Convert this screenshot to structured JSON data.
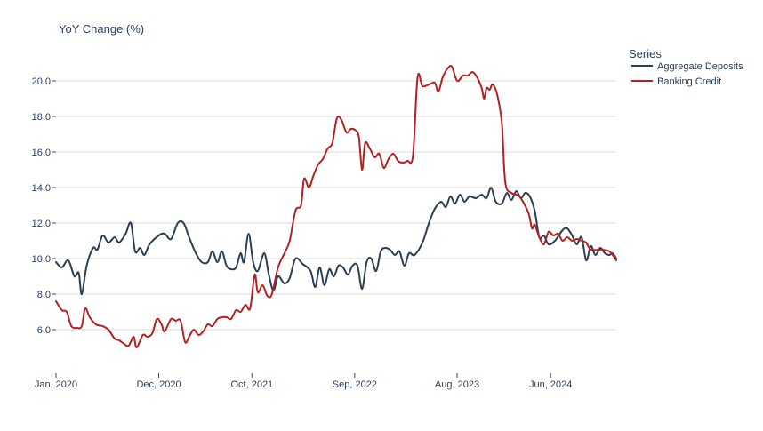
{
  "chart_data": {
    "type": "line",
    "title": "YoY Change (%)",
    "xlabel": "",
    "ylabel": "",
    "x_range": [
      "2020-01-01",
      "2025-01-01"
    ],
    "ylim": [
      4.2,
      21.8
    ],
    "x_ticks": [
      {
        "date": "2020-01-01",
        "label": "Jan, 2020"
      },
      {
        "date": "2020-12-01",
        "label": "Dec, 2020"
      },
      {
        "date": "2021-10-01",
        "label": "Oct, 2021"
      },
      {
        "date": "2022-09-01",
        "label": "Sep, 2022"
      },
      {
        "date": "2023-08-01",
        "label": "Aug, 2023"
      },
      {
        "date": "2024-06-01",
        "label": "Jun, 2024"
      }
    ],
    "y_ticks": [
      6.0,
      8.0,
      10.0,
      12.0,
      14.0,
      16.0,
      18.0,
      20.0
    ],
    "y_tick_labels": [
      "6.0",
      "8.0",
      "10.0",
      "12.0",
      "14.0",
      "16.0",
      "18.0",
      "20.0"
    ],
    "grid": "horizontal",
    "legend": {
      "title": "Series",
      "position": "top-right"
    },
    "series": [
      {
        "name": "Aggregate Deposits",
        "color": "#2c3e50",
        "points": [
          [
            "2020-01-01",
            9.8
          ],
          [
            "2020-01-20",
            9.5
          ],
          [
            "2020-02-10",
            9.9
          ],
          [
            "2020-03-01",
            9.0
          ],
          [
            "2020-03-15",
            9.2
          ],
          [
            "2020-03-25",
            8.0
          ],
          [
            "2020-04-10",
            9.6
          ],
          [
            "2020-05-01",
            10.6
          ],
          [
            "2020-05-15",
            10.5
          ],
          [
            "2020-06-01",
            11.3
          ],
          [
            "2020-06-20",
            10.9
          ],
          [
            "2020-07-10",
            11.2
          ],
          [
            "2020-07-25",
            10.9
          ],
          [
            "2020-08-15",
            11.4
          ],
          [
            "2020-09-01",
            12.0
          ],
          [
            "2020-09-15",
            10.4
          ],
          [
            "2020-10-01",
            10.6
          ],
          [
            "2020-10-15",
            10.2
          ],
          [
            "2020-11-01",
            10.8
          ],
          [
            "2020-12-01",
            11.3
          ],
          [
            "2020-12-20",
            11.4
          ],
          [
            "2021-01-10",
            11.1
          ],
          [
            "2021-02-01",
            12.0
          ],
          [
            "2021-02-20",
            12.0
          ],
          [
            "2021-03-10",
            11.2
          ],
          [
            "2021-04-01",
            10.3
          ],
          [
            "2021-04-20",
            9.8
          ],
          [
            "2021-05-10",
            9.8
          ],
          [
            "2021-05-25",
            10.4
          ],
          [
            "2021-06-10",
            9.8
          ],
          [
            "2021-06-25",
            10.4
          ],
          [
            "2021-07-10",
            9.6
          ],
          [
            "2021-07-25",
            9.4
          ],
          [
            "2021-08-10",
            9.5
          ],
          [
            "2021-08-25",
            10.3
          ],
          [
            "2021-09-05",
            9.8
          ],
          [
            "2021-09-20",
            11.4
          ],
          [
            "2021-10-05",
            9.8
          ],
          [
            "2021-10-20",
            9.3
          ],
          [
            "2021-11-10",
            10.3
          ],
          [
            "2021-11-25",
            9.1
          ],
          [
            "2021-12-10",
            8.2
          ],
          [
            "2021-12-25",
            9.0
          ],
          [
            "2022-01-15",
            8.6
          ],
          [
            "2022-02-01",
            8.9
          ],
          [
            "2022-02-20",
            10.0
          ],
          [
            "2022-03-15",
            9.7
          ],
          [
            "2022-04-10",
            9.3
          ],
          [
            "2022-04-25",
            8.4
          ],
          [
            "2022-05-10",
            9.5
          ],
          [
            "2022-05-25",
            8.5
          ],
          [
            "2022-06-10",
            9.4
          ],
          [
            "2022-06-25",
            9.0
          ],
          [
            "2022-07-10",
            9.6
          ],
          [
            "2022-07-25",
            9.5
          ],
          [
            "2022-08-10",
            9.1
          ],
          [
            "2022-08-25",
            9.6
          ],
          [
            "2022-09-10",
            9.6
          ],
          [
            "2022-09-25",
            8.3
          ],
          [
            "2022-10-10",
            9.8
          ],
          [
            "2022-10-25",
            10.0
          ],
          [
            "2022-11-10",
            9.3
          ],
          [
            "2022-11-25",
            10.4
          ],
          [
            "2022-12-10",
            10.6
          ],
          [
            "2022-12-25",
            10.5
          ],
          [
            "2023-01-10",
            10.2
          ],
          [
            "2023-01-25",
            10.4
          ],
          [
            "2023-02-10",
            9.6
          ],
          [
            "2023-02-25",
            10.3
          ],
          [
            "2023-03-15",
            10.2
          ],
          [
            "2023-04-10",
            10.9
          ],
          [
            "2023-05-01",
            12.0
          ],
          [
            "2023-05-20",
            12.8
          ],
          [
            "2023-06-10",
            13.2
          ],
          [
            "2023-06-25",
            12.9
          ],
          [
            "2023-07-10",
            13.5
          ],
          [
            "2023-07-25",
            13.1
          ],
          [
            "2023-08-10",
            13.6
          ],
          [
            "2023-08-25",
            13.2
          ],
          [
            "2023-09-10",
            13.5
          ],
          [
            "2023-10-01",
            13.4
          ],
          [
            "2023-10-20",
            13.6
          ],
          [
            "2023-11-05",
            13.4
          ],
          [
            "2023-11-20",
            14.0
          ],
          [
            "2023-12-05",
            13.2
          ],
          [
            "2023-12-25",
            13.1
          ],
          [
            "2024-01-10",
            13.7
          ],
          [
            "2024-01-25",
            13.3
          ],
          [
            "2024-02-10",
            13.8
          ],
          [
            "2024-02-25",
            13.4
          ],
          [
            "2024-03-10",
            13.7
          ],
          [
            "2024-03-25",
            13.5
          ],
          [
            "2024-04-10",
            12.7
          ],
          [
            "2024-04-25",
            11.2
          ],
          [
            "2024-05-10",
            11.3
          ],
          [
            "2024-05-25",
            10.8
          ],
          [
            "2024-06-15",
            11.0
          ],
          [
            "2024-07-10",
            11.6
          ],
          [
            "2024-07-25",
            11.7
          ],
          [
            "2024-08-10",
            11.3
          ],
          [
            "2024-08-25",
            10.8
          ],
          [
            "2024-09-10",
            11.2
          ],
          [
            "2024-09-25",
            9.9
          ],
          [
            "2024-10-10",
            10.7
          ],
          [
            "2024-10-25",
            10.2
          ],
          [
            "2024-11-10",
            10.6
          ],
          [
            "2024-11-25",
            10.3
          ],
          [
            "2024-12-10",
            10.2
          ],
          [
            "2024-12-20",
            10.3
          ],
          [
            "2025-01-01",
            10.0
          ]
        ]
      },
      {
        "name": "Banking Credit",
        "color": "#b22222",
        "points": [
          [
            "2020-01-01",
            7.6
          ],
          [
            "2020-01-20",
            7.1
          ],
          [
            "2020-02-05",
            7.0
          ],
          [
            "2020-02-20",
            6.2
          ],
          [
            "2020-03-10",
            6.1
          ],
          [
            "2020-03-25",
            6.2
          ],
          [
            "2020-04-05",
            7.2
          ],
          [
            "2020-04-20",
            6.7
          ],
          [
            "2020-05-10",
            6.3
          ],
          [
            "2020-06-01",
            6.2
          ],
          [
            "2020-06-20",
            6.0
          ],
          [
            "2020-07-10",
            5.5
          ],
          [
            "2020-07-25",
            5.4
          ],
          [
            "2020-08-10",
            5.2
          ],
          [
            "2020-08-25",
            5.1
          ],
          [
            "2020-09-10",
            5.6
          ],
          [
            "2020-09-20",
            5.0
          ],
          [
            "2020-10-10",
            5.7
          ],
          [
            "2020-10-25",
            5.6
          ],
          [
            "2020-11-10",
            5.8
          ],
          [
            "2020-11-25",
            6.6
          ],
          [
            "2020-12-10",
            6.3
          ],
          [
            "2020-12-20",
            5.9
          ],
          [
            "2021-01-10",
            6.6
          ],
          [
            "2021-01-25",
            6.5
          ],
          [
            "2021-02-10",
            6.5
          ],
          [
            "2021-02-25",
            5.3
          ],
          [
            "2021-03-10",
            5.6
          ],
          [
            "2021-03-25",
            6.0
          ],
          [
            "2021-04-10",
            5.7
          ],
          [
            "2021-04-25",
            5.9
          ],
          [
            "2021-05-10",
            6.3
          ],
          [
            "2021-05-25",
            6.2
          ],
          [
            "2021-06-10",
            6.6
          ],
          [
            "2021-06-25",
            6.7
          ],
          [
            "2021-07-10",
            6.7
          ],
          [
            "2021-07-25",
            6.6
          ],
          [
            "2021-08-10",
            7.1
          ],
          [
            "2021-08-25",
            7.0
          ],
          [
            "2021-09-10",
            7.4
          ],
          [
            "2021-09-25",
            7.2
          ],
          [
            "2021-10-10",
            9.1
          ],
          [
            "2021-10-20",
            8.1
          ],
          [
            "2021-11-05",
            8.5
          ],
          [
            "2021-11-20",
            7.9
          ],
          [
            "2021-12-05",
            8.0
          ],
          [
            "2021-12-25",
            9.5
          ],
          [
            "2022-01-15",
            10.3
          ],
          [
            "2022-02-01",
            11.0
          ],
          [
            "2022-02-20",
            12.7
          ],
          [
            "2022-03-10",
            13.0
          ],
          [
            "2022-03-20",
            14.5
          ],
          [
            "2022-04-05",
            14.0
          ],
          [
            "2022-04-20",
            14.7
          ],
          [
            "2022-05-05",
            15.3
          ],
          [
            "2022-05-20",
            15.6
          ],
          [
            "2022-06-05",
            16.2
          ],
          [
            "2022-06-20",
            16.5
          ],
          [
            "2022-07-05",
            17.9
          ],
          [
            "2022-07-20",
            17.8
          ],
          [
            "2022-08-05",
            17.1
          ],
          [
            "2022-08-20",
            17.3
          ],
          [
            "2022-09-05",
            17.2
          ],
          [
            "2022-09-15",
            16.8
          ],
          [
            "2022-09-25",
            15.0
          ],
          [
            "2022-10-05",
            16.5
          ],
          [
            "2022-10-20",
            16.2
          ],
          [
            "2022-11-05",
            15.7
          ],
          [
            "2022-11-20",
            15.9
          ],
          [
            "2022-12-05",
            15.1
          ],
          [
            "2022-12-20",
            15.6
          ],
          [
            "2023-01-05",
            15.9
          ],
          [
            "2023-01-20",
            15.5
          ],
          [
            "2023-02-05",
            15.4
          ],
          [
            "2023-02-20",
            15.5
          ],
          [
            "2023-03-10",
            15.8
          ],
          [
            "2023-03-25",
            20.2
          ],
          [
            "2023-04-10",
            19.7
          ],
          [
            "2023-05-01",
            19.8
          ],
          [
            "2023-05-20",
            19.9
          ],
          [
            "2023-06-01",
            19.4
          ],
          [
            "2023-06-15",
            20.2
          ],
          [
            "2023-07-01",
            20.7
          ],
          [
            "2023-07-15",
            20.8
          ],
          [
            "2023-08-01",
            20.0
          ],
          [
            "2023-08-20",
            20.3
          ],
          [
            "2023-09-05",
            20.3
          ],
          [
            "2023-09-20",
            20.5
          ],
          [
            "2023-10-05",
            20.2
          ],
          [
            "2023-10-20",
            19.6
          ],
          [
            "2023-10-28",
            19.0
          ],
          [
            "2023-11-05",
            19.6
          ],
          [
            "2023-11-15",
            19.5
          ],
          [
            "2023-11-25",
            19.8
          ],
          [
            "2023-12-10",
            19.2
          ],
          [
            "2023-12-25",
            17.6
          ],
          [
            "2024-01-05",
            14.3
          ],
          [
            "2024-01-25",
            13.7
          ],
          [
            "2024-02-20",
            13.5
          ],
          [
            "2024-03-20",
            12.6
          ],
          [
            "2024-04-01",
            11.7
          ],
          [
            "2024-04-10",
            11.9
          ],
          [
            "2024-04-25",
            11.2
          ],
          [
            "2024-05-10",
            10.8
          ],
          [
            "2024-05-25",
            11.5
          ],
          [
            "2024-06-10",
            11.3
          ],
          [
            "2024-06-25",
            11.4
          ],
          [
            "2024-07-10",
            11.0
          ],
          [
            "2024-07-25",
            11.2
          ],
          [
            "2024-08-10",
            11.0
          ],
          [
            "2024-08-25",
            11.1
          ],
          [
            "2024-09-10",
            11.0
          ],
          [
            "2024-09-25",
            10.9
          ],
          [
            "2024-10-10",
            10.5
          ],
          [
            "2024-11-10",
            10.5
          ],
          [
            "2024-12-10",
            10.4
          ],
          [
            "2025-01-01",
            9.9
          ]
        ]
      }
    ]
  }
}
